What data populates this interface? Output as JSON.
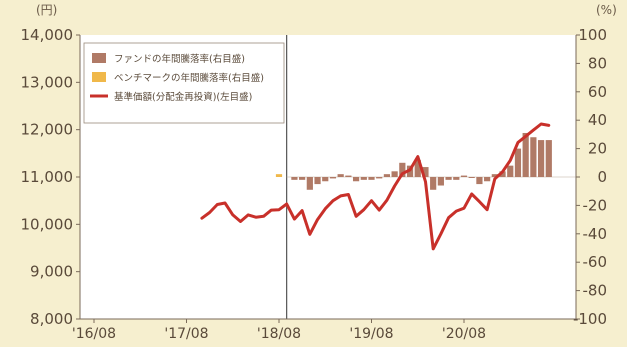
{
  "chart_data": {
    "type": "bar+line",
    "left_axis": {
      "unit": "(円)",
      "range": [
        8000,
        14000
      ],
      "ticks": [
        "8,000",
        "9,000",
        "10,000",
        "11,000",
        "12,000",
        "13,000",
        "14,000"
      ]
    },
    "right_axis": {
      "unit": "(%)",
      "range": [
        -100,
        100
      ],
      "ticks": [
        "-100",
        "-80",
        "-60",
        "-40",
        "-20",
        "0",
        "20",
        "40",
        "60",
        "80",
        "100"
      ]
    },
    "x_axis": {
      "ticks": [
        "'16/08",
        "'17/08",
        "'18/08",
        "'19/08",
        "'20/08"
      ]
    },
    "legend": [
      {
        "label": "ファンドの年間騰落率(右目盛)",
        "color": "#b07a66",
        "kind": "bar"
      },
      {
        "label": "ベンチマークの年間騰落率(右目盛)",
        "color": "#f0b84a",
        "kind": "bar"
      },
      {
        "label": "基準価額(分配金再投資)(左目盛)",
        "color": "#c8302a",
        "kind": "line"
      }
    ],
    "series": [
      {
        "name": "基準価額(分配金再投資)(左目盛)",
        "axis": "left",
        "x": [
          "2017/10",
          "2017/11",
          "2017/12",
          "2018/01",
          "2018/02",
          "2018/03",
          "2018/04",
          "2018/05",
          "2018/06",
          "2018/07",
          "2018/08",
          "2018/09",
          "2018/10",
          "2018/11",
          "2018/12",
          "2019/01",
          "2019/02",
          "2019/03",
          "2019/04",
          "2019/05",
          "2019/06",
          "2019/07",
          "2019/08",
          "2019/09",
          "2019/10",
          "2019/11",
          "2019/12",
          "2020/01",
          "2020/02",
          "2020/03",
          "2020/04",
          "2020/05",
          "2020/06",
          "2020/07",
          "2020/08",
          "2020/09",
          "2020/10",
          "2020/11",
          "2020/12",
          "2021/01",
          "2021/02",
          "2021/03",
          "2021/04",
          "2021/05",
          "2021/06",
          "2021/07"
        ],
        "values": [
          10130,
          10250,
          10420,
          10450,
          10200,
          10060,
          10200,
          10150,
          10170,
          10300,
          10310,
          10430,
          10110,
          10290,
          9790,
          10100,
          10330,
          10500,
          10600,
          10630,
          10170,
          10310,
          10500,
          10300,
          10510,
          10810,
          11070,
          11150,
          11430,
          10900,
          9480,
          9800,
          10140,
          10280,
          10340,
          10640,
          10480,
          10310,
          10960,
          11110,
          11350,
          11730,
          11860,
          11990,
          12120,
          12090
        ],
        "color": "#c8302a"
      },
      {
        "name": "ファンドの年間騰落率(右目盛)",
        "axis": "right",
        "x": [
          "2018/10",
          "2018/11",
          "2018/12",
          "2019/01",
          "2019/02",
          "2019/03",
          "2019/04",
          "2019/05",
          "2019/06",
          "2019/07",
          "2019/08",
          "2019/09",
          "2019/10",
          "2019/11",
          "2019/12",
          "2020/01",
          "2020/02",
          "2020/03",
          "2020/04",
          "2020/05",
          "2020/06",
          "2020/07",
          "2020/08",
          "2020/09",
          "2020/10",
          "2020/11",
          "2020/12",
          "2021/01",
          "2021/02",
          "2021/03",
          "2021/04",
          "2021/05",
          "2021/06",
          "2021/07"
        ],
        "values": [
          -2,
          -2,
          -9,
          -5,
          -3,
          -1,
          2,
          1,
          -3,
          -2,
          -2,
          -1,
          2,
          4,
          10,
          8,
          12,
          7,
          -9,
          -6,
          -2,
          -2,
          1,
          0,
          -5,
          -3,
          2,
          4,
          8,
          20,
          31,
          28,
          26,
          26
        ],
        "color": "#b07a66"
      },
      {
        "name": "ベンチマークの年間騰落率(右目盛)",
        "axis": "right",
        "x": [
          "2018/08"
        ],
        "values": [
          2
        ],
        "color": "#f0b84a"
      }
    ]
  }
}
